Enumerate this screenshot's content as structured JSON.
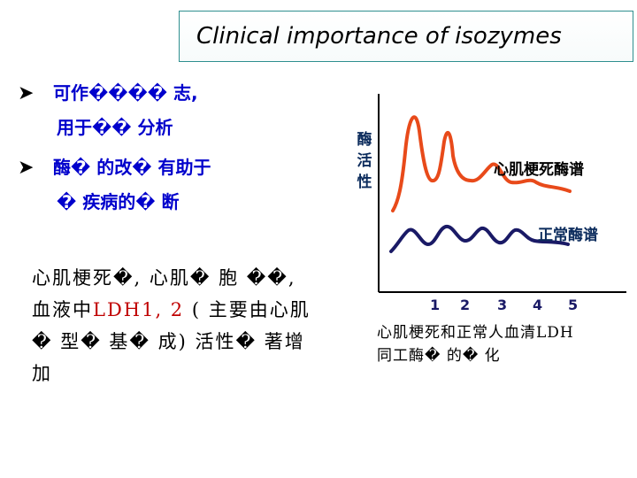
{
  "title": "Clinical importance of isozymes",
  "bullets": [
    {
      "line1": "可作���� 志,",
      "line2": "用于�� 分析"
    },
    {
      "line1": "酶� 的改� 有助于",
      "line2": "� 疾病的� 断"
    }
  ],
  "body": {
    "part1": "心肌梗死�, 心肌� 胞 ��, 血液中",
    "ldh": "LDH1, 2",
    "part2": " ( 主要由心肌� 型� 基� 成) 活性� 著增加"
  },
  "chart": {
    "ylabel": "酶活性",
    "mi_label": "心肌梗死酶谱",
    "normal_label": "正常酶谱",
    "x_ticks": [
      "1",
      "2",
      "3",
      "4",
      "5"
    ]
  },
  "chart_data": {
    "type": "line",
    "ylabel": "酶活性",
    "x_ticks": [
      "1",
      "2",
      "3",
      "4",
      "5"
    ],
    "series": [
      {
        "name": "心肌梗死酶谱",
        "profile": "high"
      },
      {
        "name": "正常酶谱",
        "profile": "low"
      }
    ]
  },
  "caption": {
    "line1": "心肌梗死和正常人血清LDH",
    "line2": "同工酶� 的� 化"
  },
  "colors": {
    "title_border": "#2f8f8f",
    "bullet_text": "#0000cc",
    "mi_curve": "#e84a1a",
    "normal_curve": "#1a1a66",
    "ldh_text": "#c00000"
  }
}
